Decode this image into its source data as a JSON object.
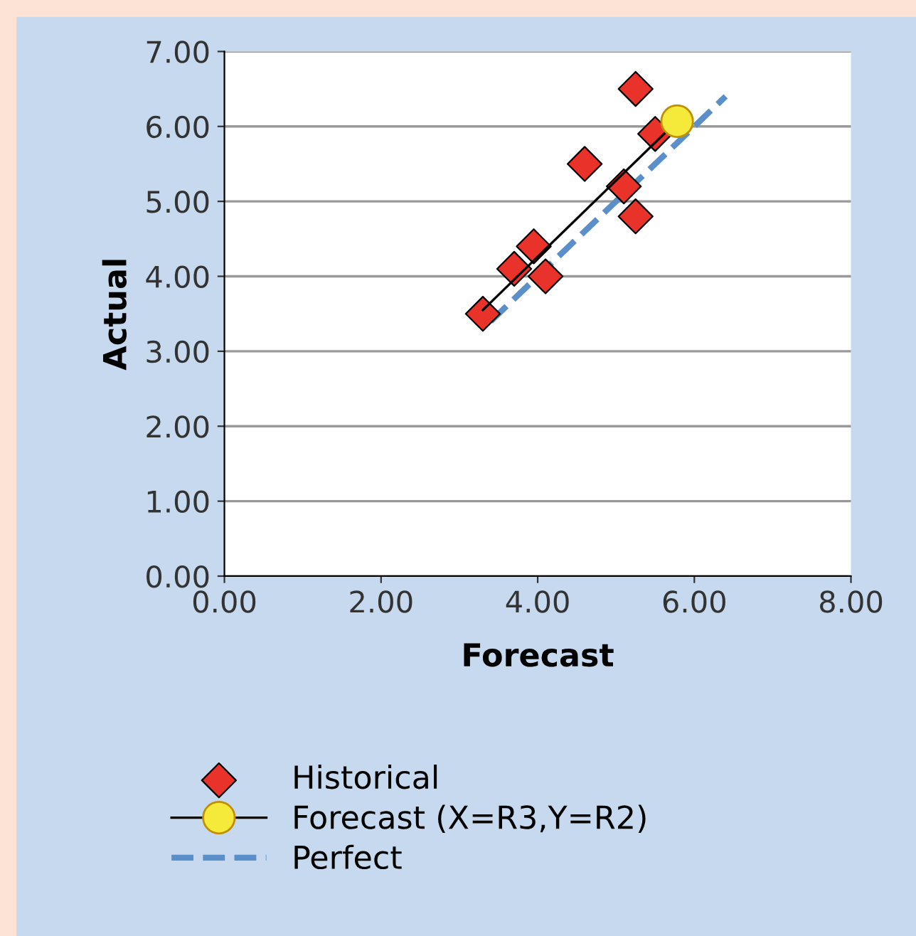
{
  "chart_data": {
    "type": "scatter",
    "xlabel": "Forecast",
    "ylabel": "Actual",
    "xlim": [
      0,
      8
    ],
    "ylim": [
      0,
      7
    ],
    "xticks": [
      {
        "value": 0,
        "label": "0.00"
      },
      {
        "value": 2,
        "label": "2.00"
      },
      {
        "value": 4,
        "label": "4.00"
      },
      {
        "value": 6,
        "label": "6.00"
      },
      {
        "value": 8,
        "label": "8.00"
      }
    ],
    "yticks": [
      {
        "value": 0,
        "label": "0.00"
      },
      {
        "value": 1,
        "label": "1.00"
      },
      {
        "value": 2,
        "label": "2.00"
      },
      {
        "value": 3,
        "label": "3.00"
      },
      {
        "value": 4,
        "label": "4.00"
      },
      {
        "value": 5,
        "label": "5.00"
      },
      {
        "value": 6,
        "label": "6.00"
      },
      {
        "value": 7,
        "label": "7.00"
      }
    ],
    "grid": "y",
    "legend": "bottom",
    "series": [
      {
        "name": "Historical",
        "marker": "diamond",
        "color": "#e8322a",
        "x": [
          3.3,
          3.7,
          3.95,
          4.1,
          4.6,
          5.1,
          5.25,
          5.25,
          5.5
        ],
        "values": [
          3.5,
          4.1,
          4.4,
          4.0,
          5.5,
          5.2,
          4.8,
          6.5,
          5.9
        ]
      },
      {
        "name": "Forecast (X=R3,Y=R2)",
        "type": "line",
        "marker": "circle",
        "line_style": "solid",
        "color": "#000000",
        "x": [
          3.3,
          5.78
        ],
        "values": [
          3.55,
          6.07
        ]
      },
      {
        "name": "Perfect",
        "type": "line",
        "marker": "none",
        "line_style": "dashed",
        "color": "#5b8fc9",
        "x": [
          3.4,
          6.4
        ],
        "values": [
          3.4,
          6.4
        ]
      }
    ]
  }
}
